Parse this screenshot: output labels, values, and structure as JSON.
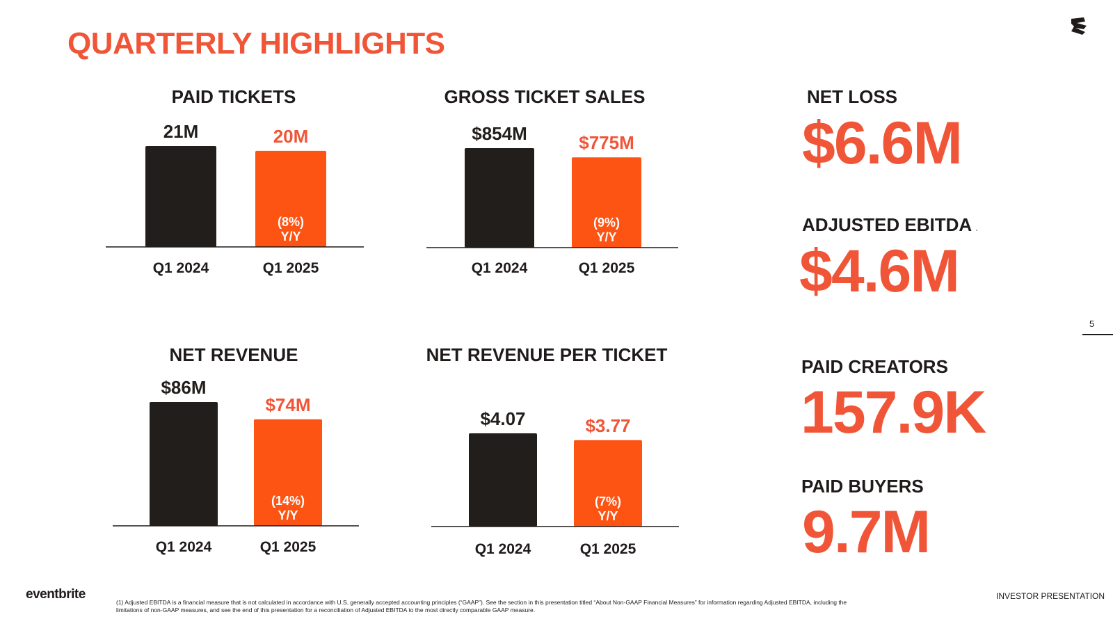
{
  "page": {
    "title": "QUARTERLY HIGHLIGHTS",
    "page_number": "5",
    "brand": "eventbrite",
    "footer_right": "INVESTOR PRESENTATION",
    "footnote": "(1) Adjusted EBITDA is a financial measure that is not calculated in accordance with U.S. generally accepted accounting principles (“GAAP”). See the section in this presentation titled “About Non-GAAP Financial Measures” for information regarding Adjusted EBITDA, including the limitations of non-GAAP measures, and see the end of this presentation for a reconciliation of Adjusted EBITDA to the most directly comparable GAAP measure."
  },
  "colors": {
    "accent": "#f05537",
    "bar_prior": "#221e1c",
    "bar_current": "#fd5313",
    "text": "#1f1b1a"
  },
  "chart_data": [
    {
      "type": "bar",
      "title": "PAID TICKETS",
      "categories": [
        "Q1 2024",
        "Q1 2025"
      ],
      "values": [
        21,
        20
      ],
      "value_labels": [
        "21M",
        "20M"
      ],
      "change_label": [
        "(8%)",
        "Y/Y"
      ]
    },
    {
      "type": "bar",
      "title": "GROSS TICKET SALES",
      "categories": [
        "Q1 2024",
        "Q1 2025"
      ],
      "values": [
        854,
        775
      ],
      "value_labels": [
        "$854M",
        "$775M"
      ],
      "change_label": [
        "(9%)",
        "Y/Y"
      ]
    },
    {
      "type": "bar",
      "title": "NET REVENUE",
      "categories": [
        "Q1 2024",
        "Q1 2025"
      ],
      "values": [
        86,
        74
      ],
      "value_labels": [
        "$86M",
        "$74M"
      ],
      "change_label": [
        "(14%)",
        "Y/Y"
      ]
    },
    {
      "type": "bar",
      "title": "NET REVENUE PER TICKET",
      "categories": [
        "Q1 2024",
        "Q1 2025"
      ],
      "values": [
        4.07,
        3.77
      ],
      "value_labels": [
        "$4.07",
        "$3.77"
      ],
      "change_label": [
        "(7%)",
        "Y/Y"
      ]
    }
  ],
  "metrics": [
    {
      "label": "NET LOSS",
      "value": "$6.6M"
    },
    {
      "label": "ADJUSTED EBITDA",
      "value": "$4.6M"
    },
    {
      "label": "PAID CREATORS",
      "value": "157.9K"
    },
    {
      "label": "PAID BUYERS",
      "value": "9.7M"
    }
  ]
}
